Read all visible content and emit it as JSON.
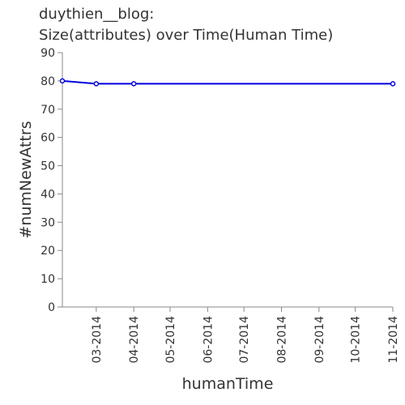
{
  "page": {
    "title_line1": "duythien__blog:",
    "title_line2": "Size(attributes) over Time(Human Time)"
  },
  "chart_data": {
    "type": "line",
    "title": "duythien__blog: Size(attributes) over Time(Human Time)",
    "xlabel": "humanTime",
    "ylabel": "#numNewAttrs",
    "ylim": [
      0,
      90
    ],
    "yticks": [
      0,
      10,
      20,
      30,
      40,
      50,
      60,
      70,
      80,
      90
    ],
    "xlim": [
      "2014-02-01",
      "2014-11-01"
    ],
    "xticks": [
      {
        "date": "2014-03-01",
        "label": "03-2014"
      },
      {
        "date": "2014-04-01",
        "label": "04-2014"
      },
      {
        "date": "2014-05-01",
        "label": "05-2014"
      },
      {
        "date": "2014-06-01",
        "label": "06-2014"
      },
      {
        "date": "2014-07-01",
        "label": "07-2014"
      },
      {
        "date": "2014-08-01",
        "label": "08-2014"
      },
      {
        "date": "2014-09-01",
        "label": "09-2014"
      },
      {
        "date": "2014-10-01",
        "label": "10-2014"
      },
      {
        "date": "2014-11-01",
        "label": "11-2014"
      }
    ],
    "series": [
      {
        "color": "#0000dd",
        "points": [
          {
            "x": "2014-02-01",
            "y": 80
          },
          {
            "x": "2014-03-01",
            "y": 79
          },
          {
            "x": "2014-04-01",
            "y": 79
          },
          {
            "x": "2014-11-01",
            "y": 79
          }
        ]
      }
    ],
    "grid": false,
    "legend": "none"
  }
}
